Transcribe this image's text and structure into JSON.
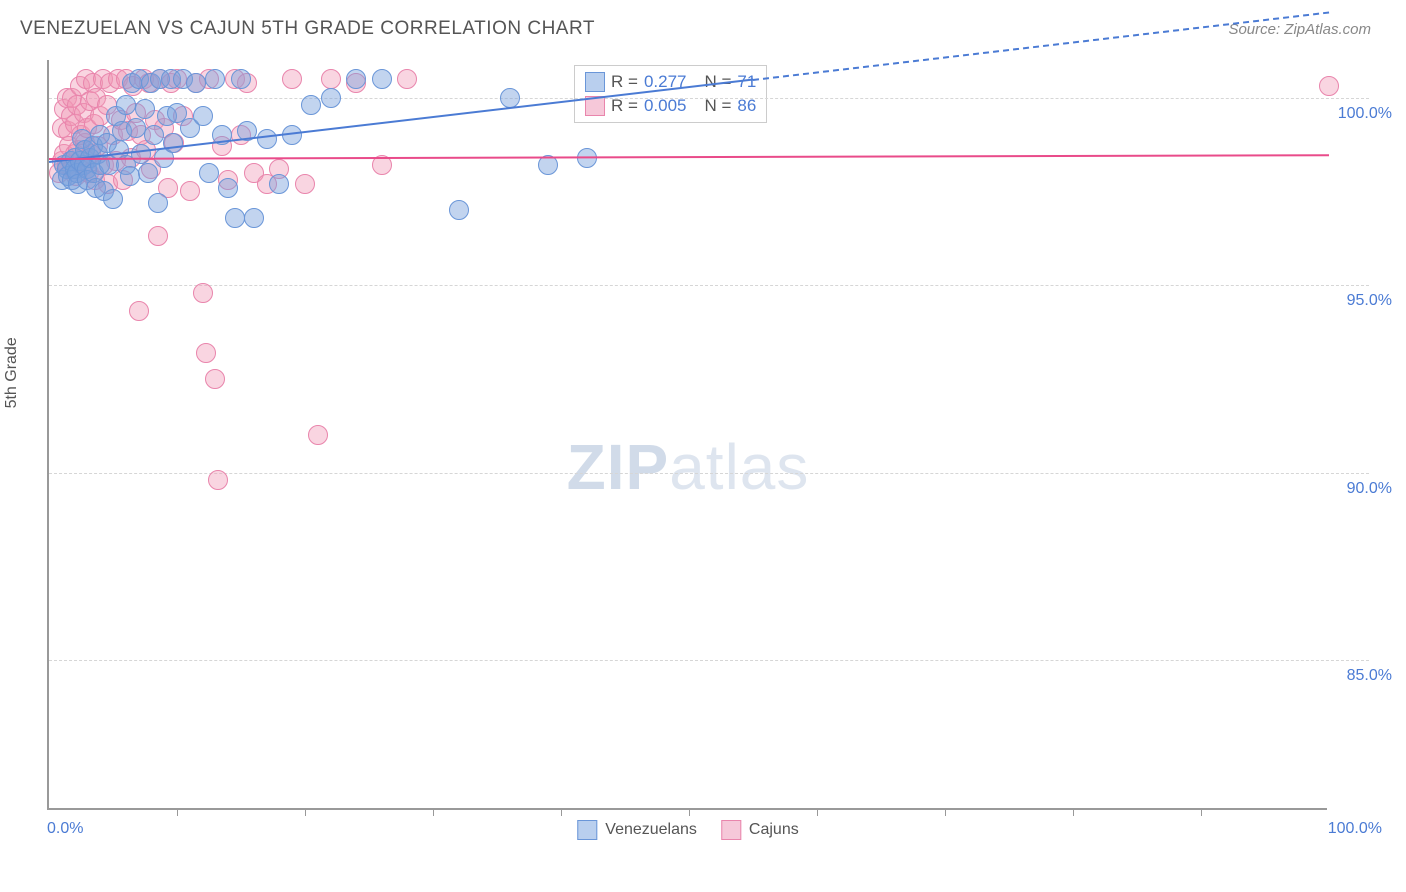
{
  "header": {
    "title": "VENEZUELAN VS CAJUN 5TH GRADE CORRELATION CHART",
    "source": "Source: ZipAtlas.com"
  },
  "chart": {
    "type": "scatter",
    "y_axis_title": "5th Grade",
    "xlim": [
      0,
      100
    ],
    "ylim": [
      81,
      101
    ],
    "x_tick_step": 10,
    "x_min_label": "0.0%",
    "x_max_label": "100.0%",
    "y_gridlines": [
      85,
      90,
      95,
      100
    ],
    "y_labels": [
      "85.0%",
      "90.0%",
      "95.0%",
      "100.0%"
    ],
    "grid_color": "#d6d6d6",
    "axis_color": "#999999",
    "label_color": "#4b7bd4",
    "background_color": "#ffffff",
    "point_radius": 10,
    "series": [
      {
        "name": "Venezuelans",
        "fill": "rgba(120,160,220,0.45)",
        "stroke": "#6a96d8",
        "swatch_fill": "#b9cfee",
        "swatch_border": "#6a96d8",
        "R": "0.277",
        "N": "71",
        "trend": {
          "x1": 0,
          "y1": 98.3,
          "x2": 60,
          "y2": 100.7,
          "color": "#4b7bd4"
        },
        "points": [
          [
            1,
            97.8
          ],
          [
            1.2,
            98.2
          ],
          [
            1.4,
            98.1
          ],
          [
            1.5,
            97.9
          ],
          [
            1.7,
            98.3
          ],
          [
            1.8,
            97.8
          ],
          [
            2,
            98.4
          ],
          [
            2,
            98.1
          ],
          [
            2.2,
            98.0
          ],
          [
            2.3,
            97.7
          ],
          [
            2.4,
            98.3
          ],
          [
            2.6,
            98.9
          ],
          [
            2.7,
            98.2
          ],
          [
            2.8,
            98.6
          ],
          [
            3,
            98.1
          ],
          [
            3,
            97.8
          ],
          [
            3.2,
            98.4
          ],
          [
            3.4,
            98.7
          ],
          [
            3.5,
            98.0
          ],
          [
            3.7,
            97.6
          ],
          [
            3.8,
            98.5
          ],
          [
            4,
            99.0
          ],
          [
            4,
            98.2
          ],
          [
            4.3,
            97.5
          ],
          [
            4.5,
            98.8
          ],
          [
            4.7,
            98.2
          ],
          [
            5,
            97.3
          ],
          [
            5.2,
            99.5
          ],
          [
            5.5,
            98.6
          ],
          [
            5.7,
            99.1
          ],
          [
            6,
            99.8
          ],
          [
            6,
            98.2
          ],
          [
            6.3,
            97.9
          ],
          [
            6.5,
            100.4
          ],
          [
            6.8,
            99.2
          ],
          [
            7,
            100.5
          ],
          [
            7.2,
            98.5
          ],
          [
            7.5,
            99.7
          ],
          [
            7.7,
            98.0
          ],
          [
            8,
            100.4
          ],
          [
            8.2,
            99.0
          ],
          [
            8.5,
            97.2
          ],
          [
            8.7,
            100.5
          ],
          [
            9,
            98.4
          ],
          [
            9.2,
            99.5
          ],
          [
            9.5,
            100.5
          ],
          [
            9.7,
            98.8
          ],
          [
            10,
            99.6
          ],
          [
            10.5,
            100.5
          ],
          [
            11,
            99.2
          ],
          [
            11.5,
            100.4
          ],
          [
            12,
            99.5
          ],
          [
            12.5,
            98.0
          ],
          [
            13,
            100.5
          ],
          [
            13.5,
            99.0
          ],
          [
            14,
            97.6
          ],
          [
            14.5,
            96.8
          ],
          [
            15,
            100.5
          ],
          [
            15.5,
            99.1
          ],
          [
            16,
            96.8
          ],
          [
            17,
            98.9
          ],
          [
            18,
            97.7
          ],
          [
            19,
            99.0
          ],
          [
            20.5,
            99.8
          ],
          [
            22,
            100.0
          ],
          [
            24,
            100.5
          ],
          [
            26,
            100.5
          ],
          [
            32,
            97.0
          ],
          [
            36,
            100.0
          ],
          [
            39,
            98.2
          ],
          [
            42,
            98.4
          ]
        ]
      },
      {
        "name": "Cajuns",
        "fill": "rgba(240,150,180,0.4)",
        "stroke": "#e985ac",
        "swatch_fill": "#f6c8d9",
        "swatch_border": "#e985ac",
        "R": "0.005",
        "N": "86",
        "trend": {
          "x1": 0,
          "y1": 98.4,
          "x2": 100,
          "y2": 98.5,
          "color": "#e94b8a"
        },
        "points": [
          [
            0.8,
            98.0
          ],
          [
            1,
            98.3
          ],
          [
            1,
            99.2
          ],
          [
            1.2,
            99.7
          ],
          [
            1.2,
            98.5
          ],
          [
            1.4,
            100.0
          ],
          [
            1.4,
            98.2
          ],
          [
            1.5,
            99.1
          ],
          [
            1.6,
            98.7
          ],
          [
            1.7,
            99.5
          ],
          [
            1.8,
            98.1
          ],
          [
            1.8,
            100.0
          ],
          [
            2,
            99.3
          ],
          [
            2,
            98.5
          ],
          [
            2.1,
            97.9
          ],
          [
            2.2,
            99.8
          ],
          [
            2.3,
            98.6
          ],
          [
            2.4,
            100.3
          ],
          [
            2.5,
            99.0
          ],
          [
            2.6,
            98.2
          ],
          [
            2.7,
            99.6
          ],
          [
            2.8,
            98.8
          ],
          [
            2.9,
            100.5
          ],
          [
            3,
            99.2
          ],
          [
            3.1,
            98.0
          ],
          [
            3.2,
            99.9
          ],
          [
            3.3,
            98.5
          ],
          [
            3.4,
            100.4
          ],
          [
            3.5,
            99.3
          ],
          [
            3.6,
            97.8
          ],
          [
            3.7,
            100.0
          ],
          [
            3.8,
            98.7
          ],
          [
            4,
            99.5
          ],
          [
            4.2,
            100.5
          ],
          [
            4.3,
            98.2
          ],
          [
            4.5,
            99.8
          ],
          [
            4.6,
            97.7
          ],
          [
            4.8,
            100.4
          ],
          [
            5,
            99.0
          ],
          [
            5.2,
            98.3
          ],
          [
            5.4,
            100.5
          ],
          [
            5.6,
            99.4
          ],
          [
            5.8,
            97.8
          ],
          [
            6,
            100.5
          ],
          [
            6.2,
            99.1
          ],
          [
            6.4,
            98.4
          ],
          [
            6.6,
            100.3
          ],
          [
            6.8,
            99.6
          ],
          [
            7,
            94.3
          ],
          [
            7.2,
            99.0
          ],
          [
            7.4,
            100.5
          ],
          [
            7.6,
            98.6
          ],
          [
            7.8,
            100.4
          ],
          [
            8,
            98.1
          ],
          [
            8.3,
            99.4
          ],
          [
            8.5,
            96.3
          ],
          [
            8.7,
            100.5
          ],
          [
            9,
            99.2
          ],
          [
            9.3,
            97.6
          ],
          [
            9.5,
            100.4
          ],
          [
            9.8,
            98.8
          ],
          [
            10,
            100.5
          ],
          [
            10.5,
            99.5
          ],
          [
            11,
            97.5
          ],
          [
            11.5,
            100.4
          ],
          [
            12,
            94.8
          ],
          [
            12.3,
            93.2
          ],
          [
            12.5,
            100.5
          ],
          [
            13,
            92.5
          ],
          [
            13.2,
            89.8
          ],
          [
            13.5,
            98.7
          ],
          [
            14,
            97.8
          ],
          [
            14.5,
            100.5
          ],
          [
            15,
            99.0
          ],
          [
            15.5,
            100.4
          ],
          [
            16,
            98.0
          ],
          [
            17,
            97.7
          ],
          [
            18,
            98.1
          ],
          [
            19,
            100.5
          ],
          [
            20,
            97.7
          ],
          [
            21,
            91.0
          ],
          [
            22,
            100.5
          ],
          [
            24,
            100.4
          ],
          [
            26,
            98.2
          ],
          [
            28,
            100.5
          ],
          [
            100,
            100.3
          ]
        ]
      }
    ],
    "top_legend": {
      "rows": [
        {
          "swatch": "blue",
          "R_label": "R =",
          "R_val": "0.277",
          "N_label": "N =",
          "N_val": "71"
        },
        {
          "swatch": "pink",
          "R_label": "R =",
          "R_val": "0.005",
          "N_label": "N =",
          "N_val": "86"
        }
      ]
    },
    "bottom_legend": [
      {
        "swatch": "blue",
        "label": "Venezuelans"
      },
      {
        "swatch": "pink",
        "label": "Cajuns"
      }
    ],
    "watermark": {
      "bold": "ZIP",
      "light": "atlas"
    }
  }
}
